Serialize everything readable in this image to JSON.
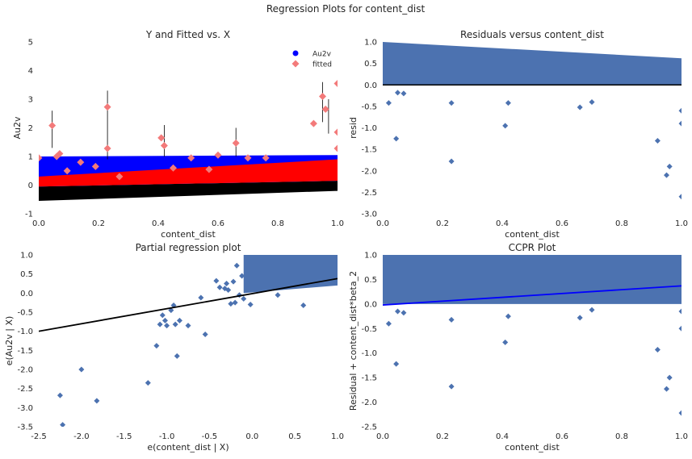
{
  "figure": {
    "title": "Regression Plots for content_dist"
  },
  "chart_data": [
    {
      "id": "fitted",
      "type": "scatter",
      "title": "Y and Fitted vs. X",
      "xlabel": "content_dist",
      "ylabel": "Au2v",
      "xlim": [
        0.0,
        1.0
      ],
      "ylim": [
        -1,
        5
      ],
      "xticks": [
        "0.0",
        "0.2",
        "0.4",
        "0.6",
        "0.8",
        "1.0"
      ],
      "yticks": [
        "-1",
        "0",
        "1",
        "2",
        "3",
        "4",
        "5"
      ],
      "grid": false,
      "legend": {
        "placement": "top-right",
        "entries": [
          "Au2v",
          "fitted"
        ]
      },
      "colors": {
        "observed": "#0000ff",
        "fitted": "#ff0000",
        "fitted_marker": "#f37a7a",
        "lower_band": "#000000",
        "errorbar": "#000000"
      },
      "bands": {
        "observed_band": {
          "x": [
            0.0,
            1.0
          ],
          "low": [
            -0.05,
            0.15
          ],
          "high": [
            1.0,
            1.05
          ]
        },
        "fitted_band": {
          "x": [
            0.0,
            1.0
          ],
          "low": [
            -0.05,
            0.15
          ],
          "high": [
            0.3,
            0.9
          ]
        },
        "lower_black_band": {
          "x": [
            0.0,
            1.0
          ],
          "low": [
            -0.55,
            -0.2
          ],
          "high": [
            -0.05,
            0.15
          ]
        }
      },
      "series": [
        {
          "name": "fitted",
          "points": [
            {
              "x": 0.0,
              "y": 0.95
            },
            {
              "x": 0.045,
              "y": 2.08
            },
            {
              "x": 0.06,
              "y": 1.0
            },
            {
              "x": 0.07,
              "y": 1.1
            },
            {
              "x": 0.095,
              "y": 0.5
            },
            {
              "x": 0.14,
              "y": 0.8
            },
            {
              "x": 0.19,
              "y": 0.65
            },
            {
              "x": 0.23,
              "y": 2.73
            },
            {
              "x": 0.23,
              "y": 1.28
            },
            {
              "x": 0.27,
              "y": 0.3
            },
            {
              "x": 0.41,
              "y": 1.65
            },
            {
              "x": 0.42,
              "y": 1.38
            },
            {
              "x": 0.45,
              "y": 0.6
            },
            {
              "x": 0.51,
              "y": 0.95
            },
            {
              "x": 0.57,
              "y": 0.55
            },
            {
              "x": 0.6,
              "y": 1.05
            },
            {
              "x": 0.66,
              "y": 1.47
            },
            {
              "x": 0.7,
              "y": 0.95
            },
            {
              "x": 0.76,
              "y": 0.95
            },
            {
              "x": 0.92,
              "y": 2.15
            },
            {
              "x": 0.95,
              "y": 3.1
            },
            {
              "x": 0.96,
              "y": 2.65
            },
            {
              "x": 1.0,
              "y": 3.55
            },
            {
              "x": 1.0,
              "y": 1.85
            },
            {
              "x": 1.0,
              "y": 1.28
            }
          ]
        }
      ],
      "errorbars": [
        {
          "x": 0.045,
          "low": 1.3,
          "high": 2.6
        },
        {
          "x": 0.23,
          "low": 0.9,
          "high": 3.3
        },
        {
          "x": 0.42,
          "low": 1.0,
          "high": 2.1
        },
        {
          "x": 0.66,
          "low": 1.0,
          "high": 2.0
        },
        {
          "x": 0.95,
          "low": 2.2,
          "high": 3.6
        },
        {
          "x": 0.97,
          "low": 1.8,
          "high": 3.0
        }
      ]
    },
    {
      "id": "resid",
      "type": "scatter",
      "title": "Residuals versus content_dist",
      "xlabel": "content_dist",
      "ylabel": "resid",
      "xlim": [
        0.0,
        1.0
      ],
      "ylim": [
        -3.0,
        1.0
      ],
      "xticks": [
        "0.0",
        "0.2",
        "0.4",
        "0.6",
        "0.8",
        "1.0"
      ],
      "yticks": [
        "-3.0",
        "-2.5",
        "-2.0",
        "-1.5",
        "-1.0",
        "-0.5",
        "0.0",
        "0.5",
        "1.0"
      ],
      "grid": false,
      "colors": {
        "points": "#4c72b0",
        "hline": "#000000"
      },
      "band": {
        "x": [
          0.0,
          1.0
        ],
        "low": [
          0.0,
          0.0
        ],
        "high": [
          1.0,
          0.62
        ]
      },
      "hline": 0.0,
      "points": [
        {
          "x": 0.02,
          "y": -0.42
        },
        {
          "x": 0.045,
          "y": -1.25
        },
        {
          "x": 0.05,
          "y": -0.18
        },
        {
          "x": 0.07,
          "y": -0.2
        },
        {
          "x": 0.23,
          "y": -0.42
        },
        {
          "x": 0.23,
          "y": -1.78
        },
        {
          "x": 0.41,
          "y": -0.95
        },
        {
          "x": 0.42,
          "y": -0.42
        },
        {
          "x": 0.66,
          "y": -0.52
        },
        {
          "x": 0.7,
          "y": -0.4
        },
        {
          "x": 0.92,
          "y": -1.3
        },
        {
          "x": 0.95,
          "y": -2.1
        },
        {
          "x": 0.96,
          "y": -1.9
        },
        {
          "x": 1.0,
          "y": -0.6
        },
        {
          "x": 1.0,
          "y": -0.9
        },
        {
          "x": 1.0,
          "y": -2.6
        }
      ]
    },
    {
      "id": "partreg",
      "type": "scatter",
      "title": "Partial regression plot",
      "xlabel": "e(content_dist | X)",
      "ylabel": "e(Au2v | X)",
      "xlim": [
        -2.5,
        1.0
      ],
      "ylim": [
        -3.5,
        1.0
      ],
      "xticks": [
        "-2.5",
        "-2.0",
        "-1.5",
        "-1.0",
        "-0.5",
        "0.0",
        "0.5",
        "1.0"
      ],
      "yticks": [
        "-3.5",
        "-3.0",
        "-2.5",
        "-2.0",
        "-1.5",
        "-1.0",
        "-0.5",
        "0.0",
        "0.5",
        "1.0"
      ],
      "grid": false,
      "colors": {
        "points": "#4c72b0",
        "line": "#000000"
      },
      "band": {
        "x": [
          -0.1,
          1.0
        ],
        "low": [
          0.0,
          0.2
        ],
        "high": [
          1.0,
          1.0
        ]
      },
      "fit_line": [
        {
          "x": -2.5,
          "y": -1.0
        },
        {
          "x": 1.0,
          "y": 0.38
        }
      ],
      "points": [
        {
          "x": -2.25,
          "y": -2.68
        },
        {
          "x": -2.22,
          "y": -3.45
        },
        {
          "x": -2.0,
          "y": -2.0
        },
        {
          "x": -1.82,
          "y": -2.82
        },
        {
          "x": -1.22,
          "y": -2.35
        },
        {
          "x": -1.12,
          "y": -1.38
        },
        {
          "x": -1.08,
          "y": -0.82
        },
        {
          "x": -1.05,
          "y": -0.58
        },
        {
          "x": -1.02,
          "y": -0.72
        },
        {
          "x": -1.0,
          "y": -0.85
        },
        {
          "x": -0.95,
          "y": -0.45
        },
        {
          "x": -0.92,
          "y": -0.32
        },
        {
          "x": -0.9,
          "y": -0.82
        },
        {
          "x": -0.88,
          "y": -1.65
        },
        {
          "x": -0.85,
          "y": -0.72
        },
        {
          "x": -0.75,
          "y": -0.85
        },
        {
          "x": -0.6,
          "y": -0.12
        },
        {
          "x": -0.55,
          "y": -1.08
        },
        {
          "x": -0.42,
          "y": 0.32
        },
        {
          "x": -0.38,
          "y": 0.15
        },
        {
          "x": -0.32,
          "y": 0.12
        },
        {
          "x": -0.3,
          "y": 0.25
        },
        {
          "x": -0.28,
          "y": 0.08
        },
        {
          "x": -0.25,
          "y": -0.28
        },
        {
          "x": -0.22,
          "y": 0.3
        },
        {
          "x": -0.2,
          "y": -0.25
        },
        {
          "x": -0.18,
          "y": 0.72
        },
        {
          "x": -0.15,
          "y": -0.05
        },
        {
          "x": -0.12,
          "y": 0.45
        },
        {
          "x": -0.1,
          "y": -0.15
        },
        {
          "x": -0.05,
          "y": 0.22
        },
        {
          "x": -0.02,
          "y": -0.3
        },
        {
          "x": 0.05,
          "y": 0.25
        },
        {
          "x": 0.3,
          "y": -0.05
        },
        {
          "x": 0.6,
          "y": -0.32
        }
      ]
    },
    {
      "id": "ccpr",
      "type": "scatter",
      "title": "CCPR Plot",
      "xlabel": "content_dist",
      "ylabel": "Residual + content_dist*beta_2",
      "xlim": [
        0.0,
        1.0
      ],
      "ylim": [
        -2.5,
        1.0
      ],
      "xticks": [
        "0.0",
        "0.2",
        "0.4",
        "0.6",
        "0.8",
        "1.0"
      ],
      "yticks": [
        "-2.5",
        "-2.0",
        "-1.5",
        "-1.0",
        "-0.5",
        "0.0",
        "0.5",
        "1.0"
      ],
      "grid": false,
      "colors": {
        "points": "#4c72b0",
        "line": "#0000ff"
      },
      "band": {
        "x": [
          0.0,
          1.0
        ],
        "low": [
          0.0,
          0.0
        ],
        "high": [
          1.0,
          1.0
        ]
      },
      "fit_line": [
        {
          "x": 0.0,
          "y": -0.02
        },
        {
          "x": 1.0,
          "y": 0.37
        }
      ],
      "points": [
        {
          "x": 0.02,
          "y": -0.4
        },
        {
          "x": 0.045,
          "y": -1.22
        },
        {
          "x": 0.05,
          "y": -0.15
        },
        {
          "x": 0.07,
          "y": -0.18
        },
        {
          "x": 0.23,
          "y": -0.32
        },
        {
          "x": 0.23,
          "y": -1.68
        },
        {
          "x": 0.41,
          "y": -0.78
        },
        {
          "x": 0.42,
          "y": -0.25
        },
        {
          "x": 0.66,
          "y": -0.28
        },
        {
          "x": 0.7,
          "y": -0.12
        },
        {
          "x": 0.92,
          "y": -0.93
        },
        {
          "x": 0.95,
          "y": -1.73
        },
        {
          "x": 0.96,
          "y": -1.5
        },
        {
          "x": 1.0,
          "y": -0.15
        },
        {
          "x": 1.0,
          "y": -0.5
        },
        {
          "x": 1.0,
          "y": -2.22
        }
      ]
    }
  ]
}
